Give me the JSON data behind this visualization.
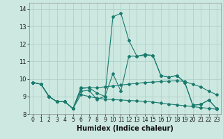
{
  "title": "",
  "xlabel": "Humidex (Indice chaleur)",
  "background_color": "#cce8e0",
  "grid_color": "#aaccc4",
  "line_color": "#1a7a6e",
  "xlim": [
    -0.5,
    23.5
  ],
  "ylim": [
    8.0,
    14.35
  ],
  "yticks": [
    8,
    9,
    10,
    11,
    12,
    13,
    14
  ],
  "xticks": [
    0,
    1,
    2,
    3,
    4,
    5,
    6,
    7,
    8,
    9,
    10,
    11,
    12,
    13,
    14,
    15,
    16,
    17,
    18,
    19,
    20,
    21,
    22,
    23
  ],
  "series": [
    [
      9.8,
      9.7,
      9.0,
      8.7,
      8.7,
      8.3,
      9.3,
      9.35,
      8.85,
      9.0,
      10.3,
      9.3,
      11.3,
      11.3,
      11.35,
      11.35,
      10.2,
      10.1,
      10.2,
      9.8,
      8.5,
      8.55,
      8.8,
      8.3
    ],
    [
      9.8,
      9.7,
      9.0,
      8.7,
      8.7,
      8.3,
      9.45,
      9.5,
      9.5,
      9.55,
      9.6,
      9.65,
      9.7,
      9.75,
      9.8,
      9.82,
      9.85,
      9.88,
      9.9,
      9.85,
      9.7,
      9.55,
      9.3,
      9.1
    ],
    [
      9.8,
      9.7,
      9.0,
      8.7,
      8.7,
      8.3,
      9.1,
      9.0,
      8.9,
      8.85,
      8.82,
      8.8,
      8.77,
      8.75,
      8.72,
      8.68,
      8.62,
      8.57,
      8.52,
      8.47,
      8.42,
      8.37,
      8.32,
      8.27
    ],
    [
      9.8,
      9.7,
      9.0,
      8.7,
      8.7,
      8.3,
      9.5,
      9.5,
      9.2,
      9.0,
      13.55,
      13.75,
      12.2,
      11.3,
      11.4,
      11.35,
      10.2,
      10.1,
      10.2,
      9.8,
      8.5,
      8.55,
      8.8,
      8.3
    ]
  ]
}
